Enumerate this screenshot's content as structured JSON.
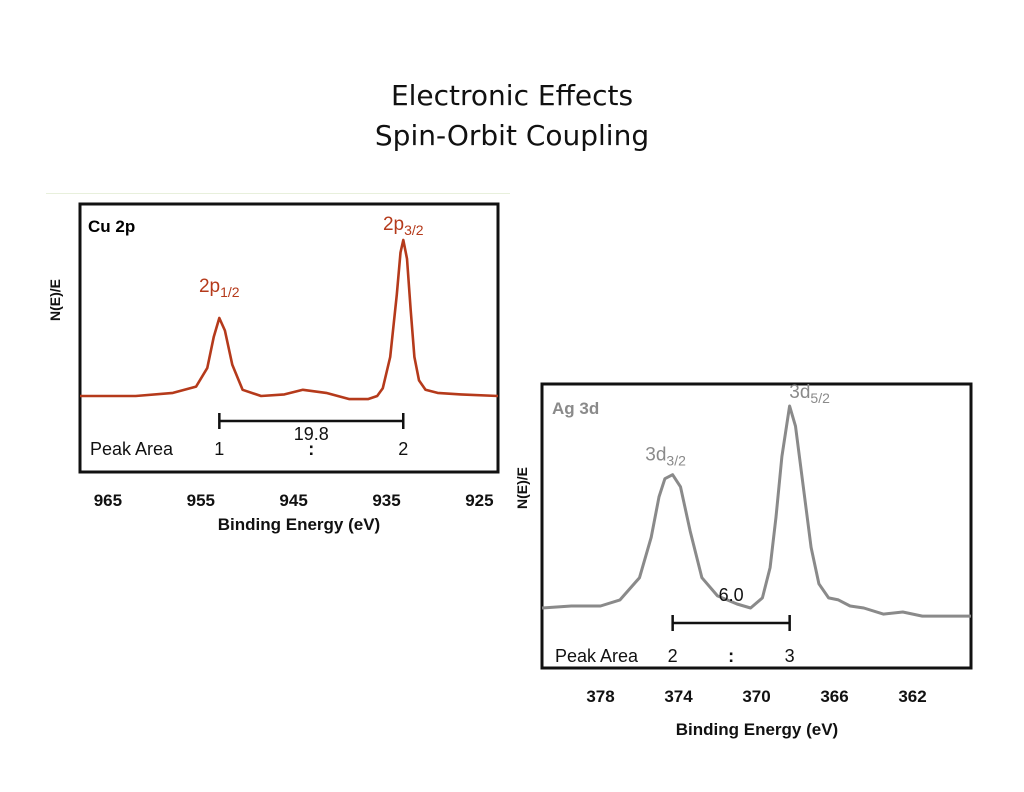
{
  "title": {
    "line1": "Electronic Effects",
    "line2": "Spin-Orbit Coupling"
  },
  "chart_data": [
    {
      "type": "line",
      "panel_label": "Cu 2p",
      "color": "#b53a1b",
      "xlabel": "Binding Energy (eV)",
      "ylabel": "N(E)/E",
      "xlim": [
        968,
        923
      ],
      "x_ticks": [
        965,
        955,
        945,
        935,
        925
      ],
      "peaks": [
        {
          "label_main": "2p",
          "label_sub": "1/2",
          "energy": 953.0,
          "peak_area": "1"
        },
        {
          "label_main": "2p",
          "label_sub": "3/2",
          "energy": 933.2,
          "peak_area": "2"
        }
      ],
      "splitting": "19.8",
      "peak_area_label": "Peak Area",
      "ratio_separator": ":",
      "series": [
        {
          "x": [
            968,
            962,
            958,
            955.5,
            954.3,
            953.6,
            953.0,
            952.4,
            951.6,
            950.5,
            948.5,
            946,
            944,
            941.5,
            939,
            937,
            936,
            935.4,
            934.6,
            933.9,
            933.5,
            933.2,
            932.8,
            932.4,
            932.0,
            931.5,
            930.8,
            929.5,
            927,
            923
          ],
          "y": [
            0.0,
            0.0,
            0.02,
            0.06,
            0.18,
            0.38,
            0.5,
            0.42,
            0.2,
            0.04,
            0.0,
            0.01,
            0.04,
            0.02,
            -0.02,
            -0.02,
            0.0,
            0.05,
            0.25,
            0.65,
            0.92,
            1.0,
            0.88,
            0.55,
            0.25,
            0.1,
            0.04,
            0.02,
            0.01,
            0.0
          ]
        }
      ]
    },
    {
      "type": "line",
      "panel_label": "Ag 3d",
      "color": "#8a8a8a",
      "xlabel": "Binding Energy (eV)",
      "ylabel": "N(E)/E",
      "xlim": [
        381,
        359
      ],
      "x_ticks": [
        378,
        374,
        370,
        366,
        362
      ],
      "peaks": [
        {
          "label_main": "3d",
          "label_sub": "3/2",
          "energy": 374.3,
          "peak_area": "2"
        },
        {
          "label_main": "3d",
          "label_sub": "5/2",
          "energy": 368.3,
          "peak_area": "3"
        }
      ],
      "splitting": "6.0",
      "peak_area_label": "Peak Area",
      "ratio_separator": ":",
      "series": [
        {
          "x": [
            381,
            379.5,
            378,
            377,
            376,
            375.4,
            375.0,
            374.7,
            374.3,
            373.9,
            373.4,
            372.8,
            372.0,
            371.0,
            370.3,
            369.7,
            369.3,
            369.0,
            368.7,
            368.3,
            368.0,
            367.6,
            367.2,
            366.8,
            366.3,
            365.8,
            365.2,
            364.5,
            363.5,
            362.5,
            361.5,
            360,
            359
          ],
          "y": [
            0.0,
            0.01,
            0.01,
            0.04,
            0.15,
            0.35,
            0.55,
            0.64,
            0.66,
            0.6,
            0.38,
            0.15,
            0.06,
            0.02,
            0.0,
            0.05,
            0.2,
            0.45,
            0.75,
            1.0,
            0.9,
            0.6,
            0.3,
            0.12,
            0.05,
            0.04,
            0.01,
            0.0,
            -0.03,
            -0.02,
            -0.04,
            -0.04,
            -0.04
          ]
        }
      ]
    }
  ]
}
